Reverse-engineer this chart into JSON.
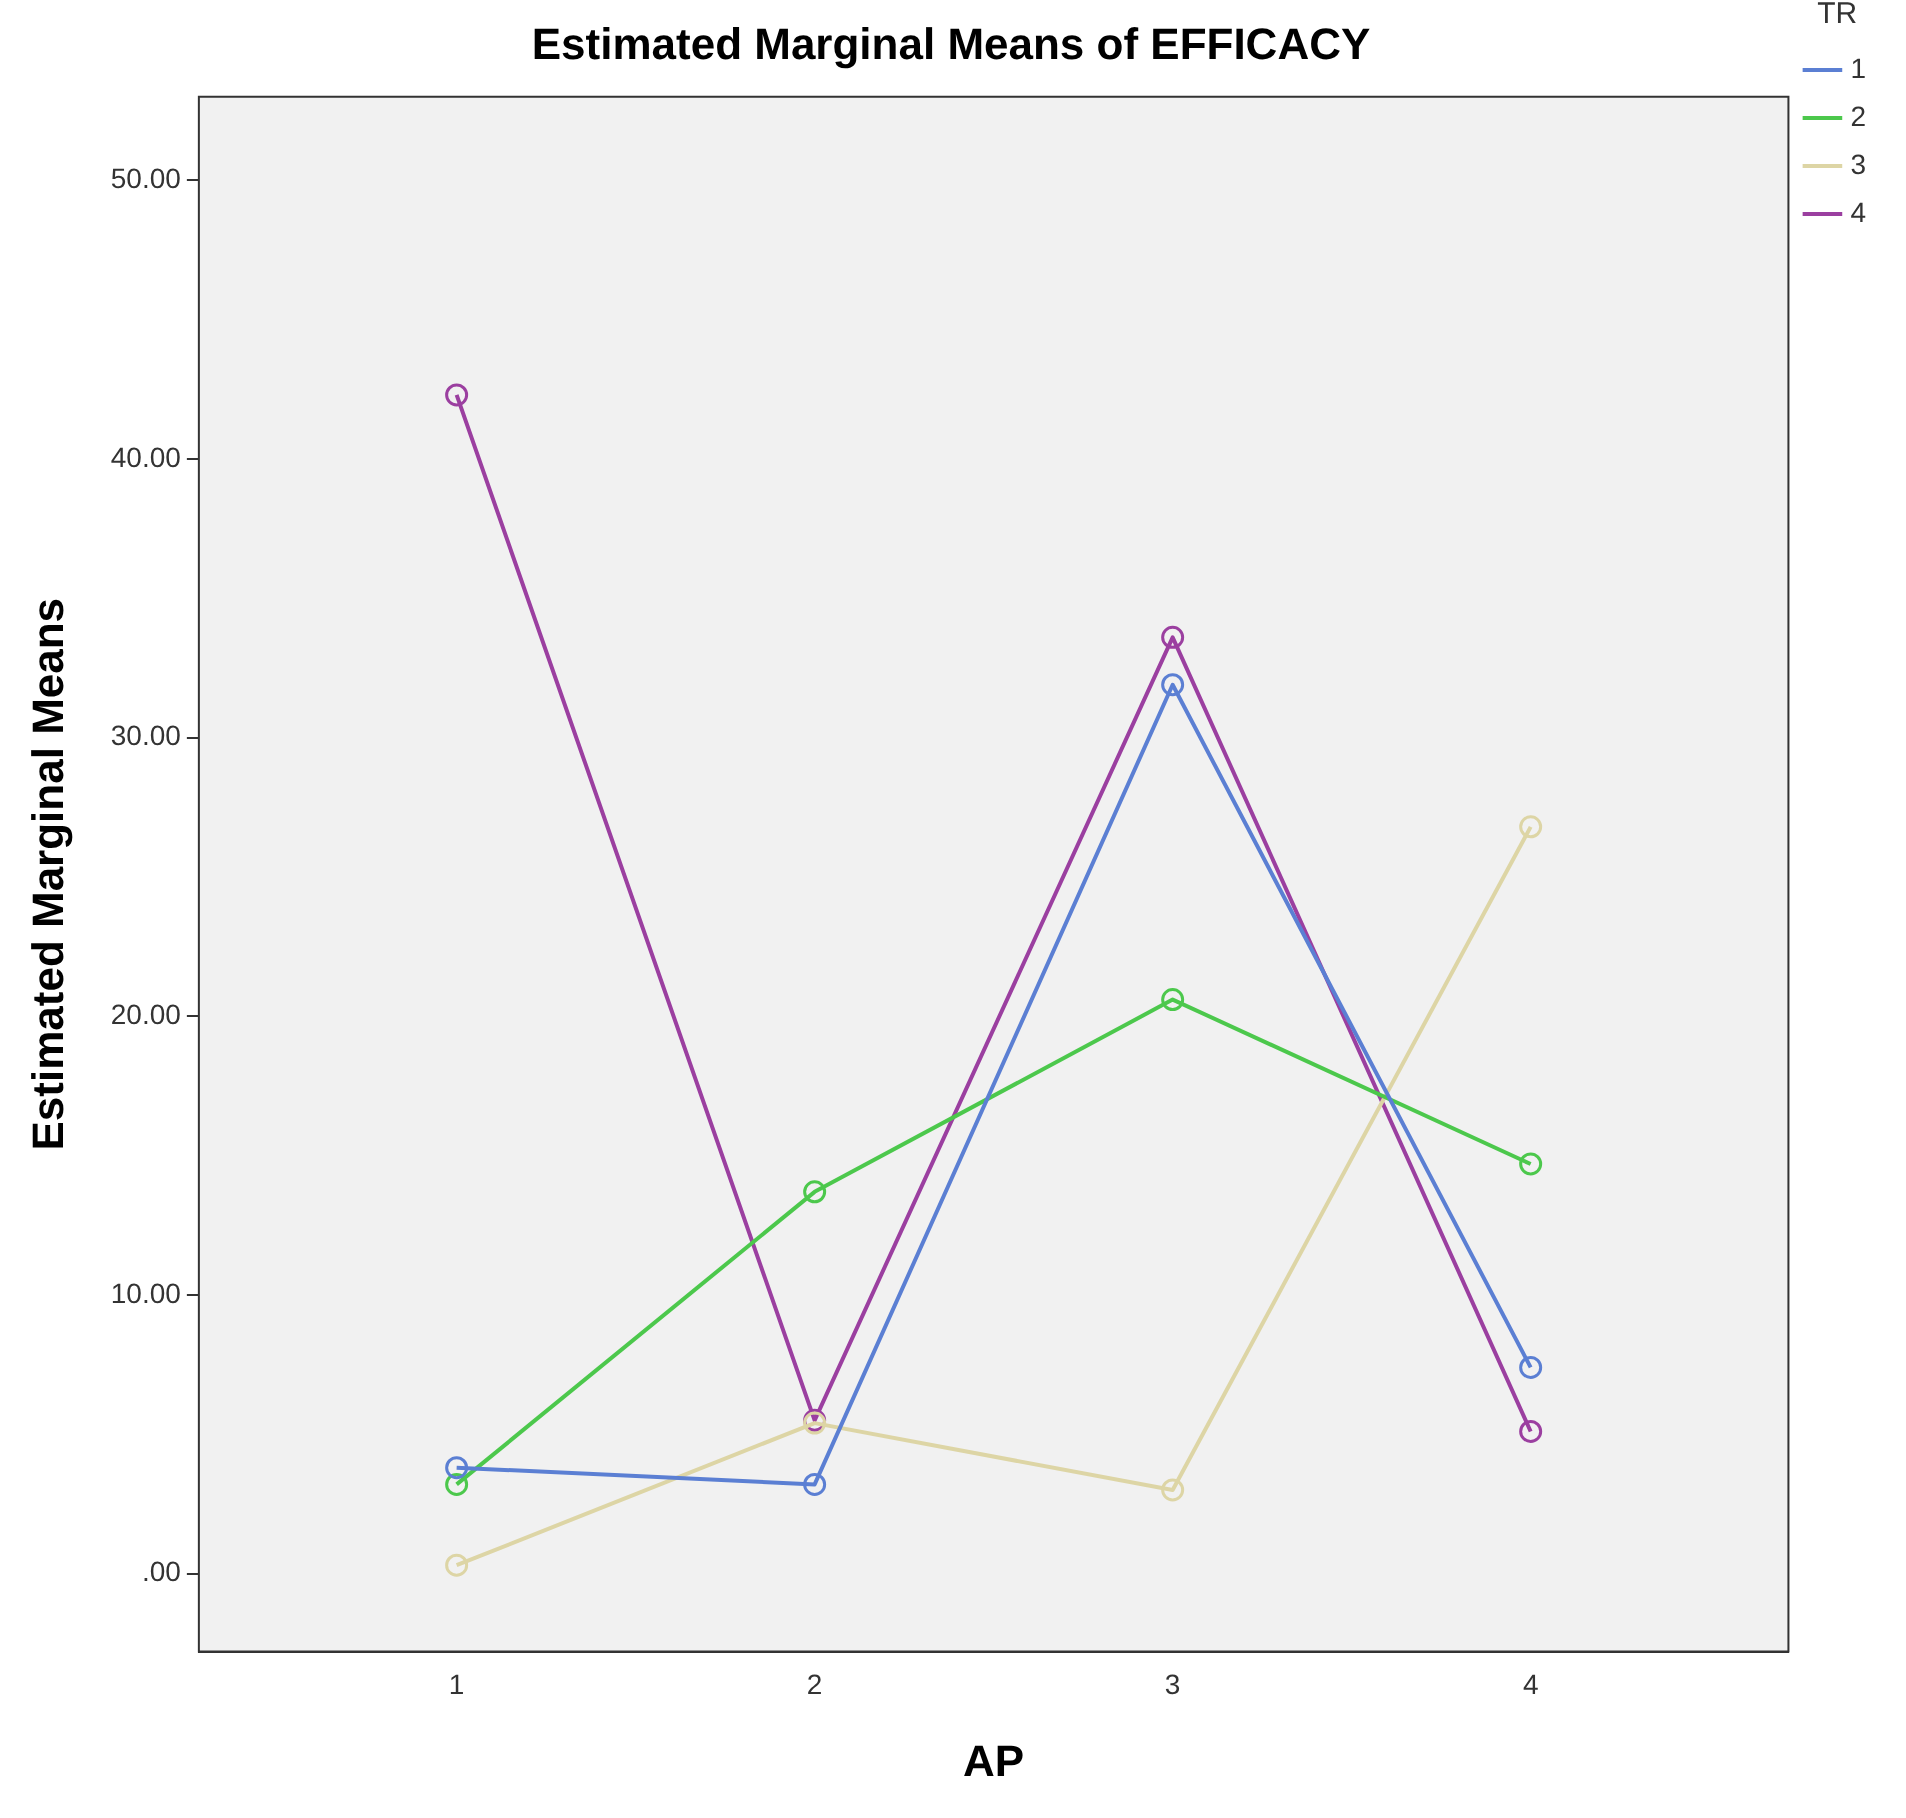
{
  "chart_data": {
    "type": "line",
    "title": "Estimated Marginal Means of EFFICACY",
    "xlabel": "AP",
    "ylabel": "Estimated Marginal Means",
    "legend_title": "TR",
    "x": [
      1,
      2,
      3,
      4
    ],
    "xlim": [
      0.28,
      4.72
    ],
    "xticks": [
      1,
      2,
      3,
      4
    ],
    "ylim": [
      -2.8,
      53
    ],
    "yticks": [
      {
        "value": 0,
        "label": ".00"
      },
      {
        "value": 10,
        "label": "10.00"
      },
      {
        "value": 20,
        "label": "20.00"
      },
      {
        "value": 30,
        "label": "30.00"
      },
      {
        "value": 40,
        "label": "40.00"
      },
      {
        "value": 50,
        "label": "50.00"
      }
    ],
    "grid": false,
    "legend": "right",
    "marker": "circle",
    "line_style": "solid",
    "series": [
      {
        "name": "1",
        "color": "#5b7fd3",
        "values": [
          3.8,
          3.2,
          31.9,
          7.4
        ]
      },
      {
        "name": "2",
        "color": "#4cc84c",
        "values": [
          3.2,
          13.7,
          20.6,
          14.7
        ]
      },
      {
        "name": "3",
        "color": "#ddd5a5",
        "values": [
          0.3,
          5.4,
          3.0,
          26.8
        ]
      },
      {
        "name": "4",
        "color": "#9b3fa0",
        "values": [
          42.3,
          5.5,
          33.6,
          5.1
        ]
      }
    ]
  }
}
